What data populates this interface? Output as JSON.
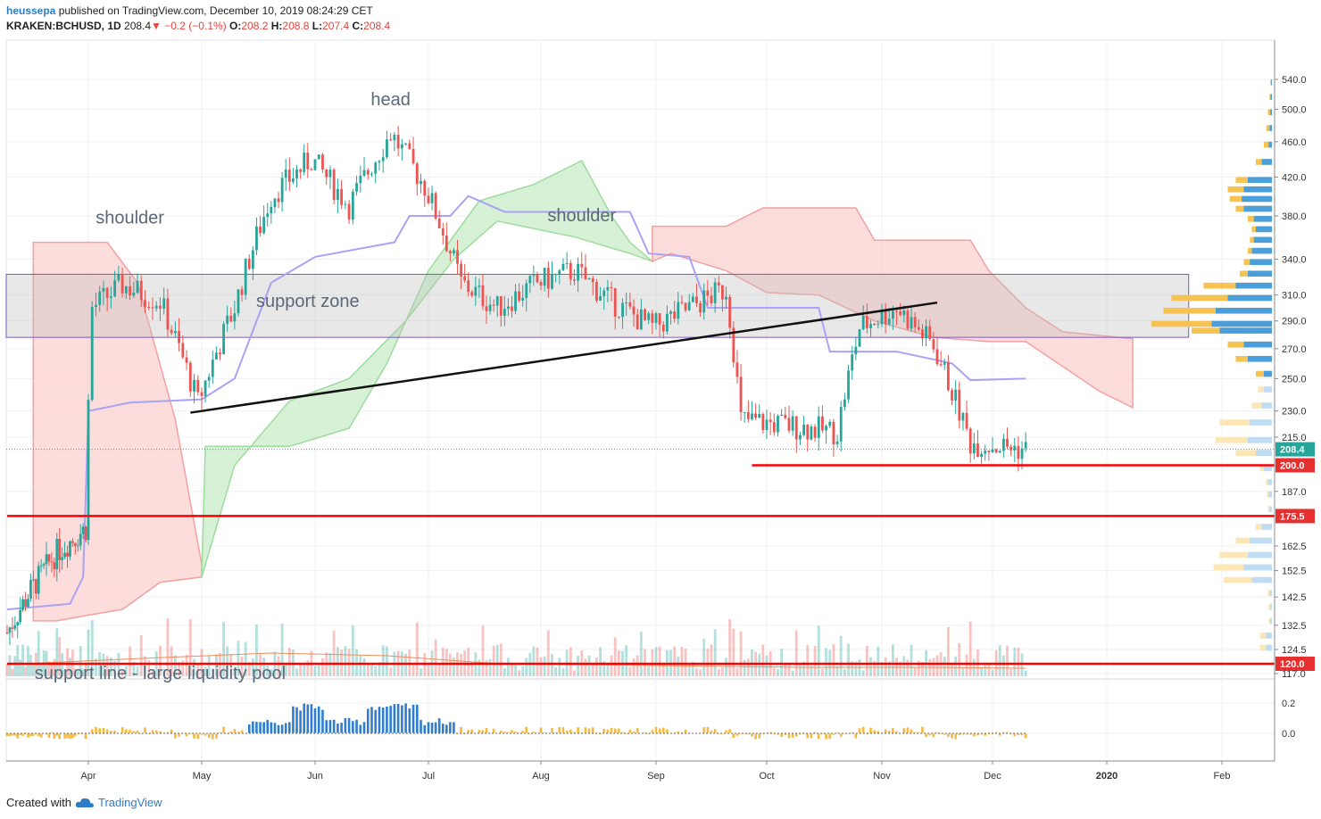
{
  "header": {
    "author": "heussepa",
    "published_text": "published on TradingView.com, December 10, 2019 08:24:29 CET",
    "symbol": "KRAKEN:BCHUSD, 1D",
    "last": "208.4",
    "change": "−0.2 (−0.1%)",
    "o_label": "O:",
    "o": "208.2",
    "h_label": "H:",
    "h": "208.8",
    "l_label": "L:",
    "l": "207.4",
    "c_label": "C:",
    "c": "208.4"
  },
  "footer": {
    "created_with": "Created with",
    "brand": "TradingView"
  },
  "colors": {
    "up": "#26a69a",
    "down": "#ef5350",
    "kumo_bull": "#c8ecc8",
    "kumo_bear": "#fcd0d0",
    "kijun": "#a9a2f5",
    "red_line": "#ff0000",
    "vp_up": "#f6c352",
    "vp_down": "#4a9fdb",
    "support_zone": "#bdbdbd"
  },
  "chart_data": {
    "type": "candlestick",
    "symbol": "KRAKEN:BCHUSD",
    "interval": "1D",
    "x_ticks": [
      "Apr",
      "May",
      "Jun",
      "Jul",
      "Aug",
      "Sep",
      "Oct",
      "Nov",
      "Dec",
      "2020",
      "Feb"
    ],
    "y_ticks": [
      "540.0",
      "500.0",
      "460.0",
      "420.0",
      "380.0",
      "340.0",
      "310.0",
      "290.0",
      "270.0",
      "250.0",
      "230.0",
      "215.0",
      "187.0",
      "162.5",
      "152.5",
      "142.5",
      "132.5",
      "124.5",
      "117.0"
    ],
    "price_scale": "log",
    "last_price_label": "208.4",
    "horizontal_levels": [
      {
        "value": 200.0,
        "label": "200.0",
        "start": "2019-09-27"
      },
      {
        "value": 175.5,
        "label": "175.5",
        "start": "2019-03-01"
      },
      {
        "value": 120.0,
        "label": "120.0",
        "start": "2019-03-01"
      }
    ],
    "support_zone": {
      "low": 278,
      "high": 327,
      "label": "support zone"
    },
    "trend_line": {
      "from": {
        "date": "2019-04-28",
        "price": 229
      },
      "to": {
        "date": "2019-11-16",
        "price": 304
      }
    },
    "annotations": [
      {
        "text": "head",
        "date": "2019-06-21",
        "price": 512
      },
      {
        "text": "shoulder",
        "date": "2019-04-12",
        "price": 378
      },
      {
        "text": "shoulder",
        "date": "2019-08-12",
        "price": 380
      },
      {
        "text": "support zone",
        "date": "2019-05-30",
        "price": 305
      },
      {
        "text": "support line - large liquidity pool",
        "date": "2019-04-20",
        "price": 117
      }
    ],
    "oscillator_ticks": [
      "0.2",
      "0.0"
    ],
    "candles_approx": [
      {
        "date": "2019-03-01",
        "close": 130
      },
      {
        "date": "2019-03-10",
        "close": 145
      },
      {
        "date": "2019-03-20",
        "close": 160
      },
      {
        "date": "2019-03-31",
        "close": 170
      },
      {
        "date": "2019-04-02",
        "close": 300
      },
      {
        "date": "2019-04-10",
        "close": 318
      },
      {
        "date": "2019-04-20",
        "close": 305
      },
      {
        "date": "2019-04-30",
        "close": 235
      },
      {
        "date": "2019-05-10",
        "close": 300
      },
      {
        "date": "2019-05-20",
        "close": 400
      },
      {
        "date": "2019-05-31",
        "close": 440
      },
      {
        "date": "2019-06-10",
        "close": 390
      },
      {
        "date": "2019-06-21",
        "close": 470
      },
      {
        "date": "2019-06-30",
        "close": 410
      },
      {
        "date": "2019-07-10",
        "close": 320
      },
      {
        "date": "2019-07-20",
        "close": 300
      },
      {
        "date": "2019-07-31",
        "close": 320
      },
      {
        "date": "2019-08-10",
        "close": 330
      },
      {
        "date": "2019-08-20",
        "close": 305
      },
      {
        "date": "2019-08-31",
        "close": 285
      },
      {
        "date": "2019-09-10",
        "close": 300
      },
      {
        "date": "2019-09-20",
        "close": 315
      },
      {
        "date": "2019-09-24",
        "close": 225
      },
      {
        "date": "2019-10-05",
        "close": 222
      },
      {
        "date": "2019-10-20",
        "close": 218
      },
      {
        "date": "2019-10-26",
        "close": 285
      },
      {
        "date": "2019-11-05",
        "close": 300
      },
      {
        "date": "2019-11-15",
        "close": 272
      },
      {
        "date": "2019-11-25",
        "close": 212
      },
      {
        "date": "2019-12-10",
        "close": 208.4
      }
    ]
  }
}
